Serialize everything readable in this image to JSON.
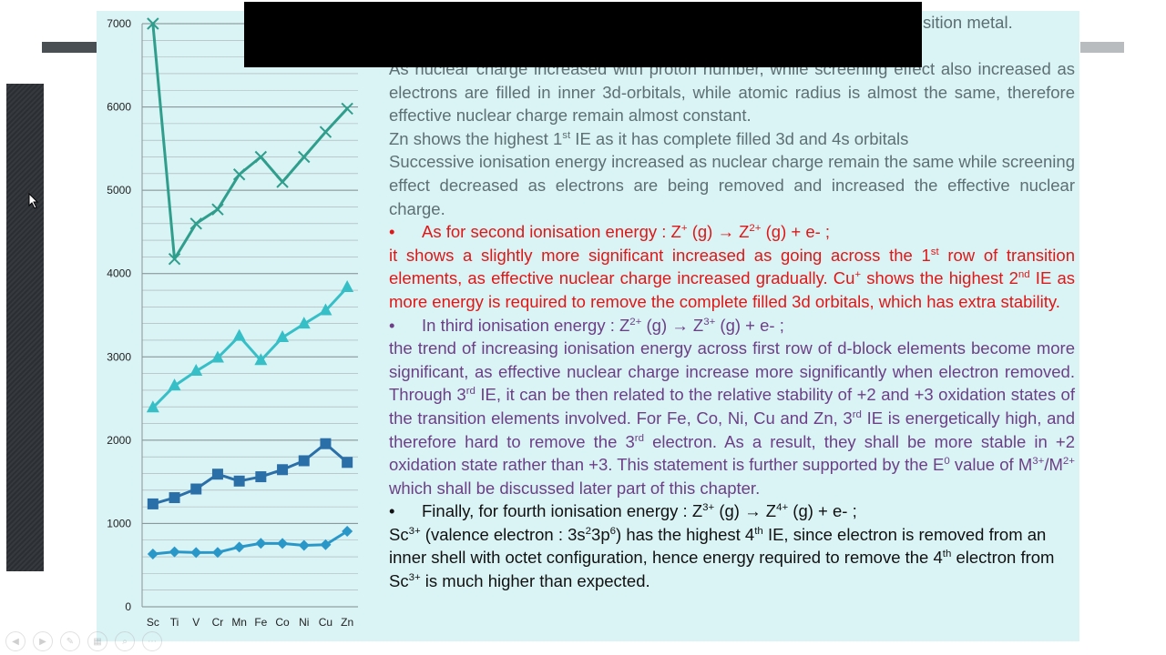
{
  "slide": {
    "title_fragment": "sition metal.",
    "paragraphs": {
      "p1a": "As nuclear charge increased with proton number, while screening effect also increased as electrons are filled in inner 3d-orbitals, while atomic radius is almost the same, therefore effective nuclear charge remain almost constant.",
      "p1b_pre": "Zn shows the highest 1",
      "p1b_sup": "st",
      "p1b_post": " IE as it has complete filled 3d and 4s orbitals",
      "p1c": "Successive ionisation energy increased as nuclear charge remain the same while screening effect decreased as electrons are being removed and increased the effective nuclear charge.",
      "second_bullet": "•",
      "second_head_pre": "As for second ionisation energy : Z",
      "second_head_sup1": "+",
      "second_head_mid": " (g) → Z",
      "second_head_sup2": "2+",
      "second_head_post": " (g) + e- ;",
      "second_body_a": "it shows a slightly more significant increased as going across the 1",
      "second_body_sup1": "st",
      "second_body_b": " row of transition elements, as effective nuclear charge increased gradually. Cu",
      "second_body_sup2": "+",
      "second_body_c": " shows the highest 2",
      "second_body_sup3": "nd",
      "second_body_d": " IE as more energy is required to remove the complete filled 3d orbitals, which has extra stability.",
      "third_bullet": "•",
      "third_head_pre": "In third ionisation energy : Z",
      "third_head_sup1": "2+",
      "third_head_mid": " (g) → Z",
      "third_head_sup2": "3+",
      "third_head_post": " (g) + e- ;",
      "third_body_a": "the trend of increasing ionisation energy across first row of d-block elements become more significant, as effective nuclear charge increase more significantly when electron removed. Through 3",
      "third_body_sup1": "rd",
      "third_body_b": " IE, it can be then related to the relative stability of +2 and +3 oxidation states of the transition elements involved. For Fe, Co, Ni, Cu and Zn, 3",
      "third_body_sup2": "rd",
      "third_body_c": " IE is energetically high, and therefore hard to remove the 3",
      "third_body_sup3": "rd",
      "third_body_d": " electron. As a result, they shall be more stable in +2 oxidation state rather than +3. This statement is further supported by the E",
      "third_body_sup4": "0",
      "third_body_e": " value of M",
      "third_body_sup5": "3+",
      "third_body_f": "/M",
      "third_body_sup6": "2+",
      "third_body_g": " which shall be discussed later part of this chapter.",
      "fourth_bullet": "•",
      "fourth_head_pre": "Finally, for fourth ionisation energy : Z",
      "fourth_head_sup1": "3+",
      "fourth_head_mid": " (g) → Z",
      "fourth_head_sup2": "4+",
      "fourth_head_post": " (g) + e- ;",
      "fourth_body_a": "Sc",
      "fourth_body_sup1": "3+",
      "fourth_body_b": " (valence electron : 3s",
      "fourth_body_sup2": "2",
      "fourth_body_c": "3p",
      "fourth_body_sup3": "6",
      "fourth_body_d": ") has the highest 4",
      "fourth_body_sup4": "th",
      "fourth_body_e": " IE, since electron is removed from an inner shell with octet configuration, hence energy required to remove the 4",
      "fourth_body_sup5": "th",
      "fourth_body_f": " electron from Sc",
      "fourth_body_sup6": "3+",
      "fourth_body_g": " is much higher than expected."
    }
  },
  "colors": {
    "slide_bg": "#daf3f5",
    "ie1": "#2a97c9",
    "ie2": "#2b6fa8",
    "ie3": "#36bfc6",
    "ie4": "#2f9e8c",
    "red_text": "#e01717",
    "purple_text": "#6c3f86"
  },
  "chart_data": {
    "type": "line",
    "categories": [
      "Sc",
      "Ti",
      "V",
      "Cr",
      "Mn",
      "Fe",
      "Co",
      "Ni",
      "Cu",
      "Zn"
    ],
    "ylim": [
      0,
      7000
    ],
    "yticks": [
      0,
      1000,
      2000,
      3000,
      4000,
      5000,
      6000,
      7000
    ],
    "grid": true,
    "series": [
      {
        "marker": "diamond",
        "color": "#2a97c9",
        "values": [
          633,
          659,
          651,
          653,
          717,
          762,
          760,
          737,
          745,
          906
        ]
      },
      {
        "marker": "square",
        "color": "#2b6fa8",
        "values": [
          1235,
          1310,
          1414,
          1592,
          1509,
          1561,
          1646,
          1753,
          1958,
          1733
        ]
      },
      {
        "marker": "triangle",
        "color": "#36bfc6",
        "values": [
          2389,
          2652,
          2828,
          2987,
          3248,
          2957,
          3232,
          3395,
          3555,
          3833
        ]
      },
      {
        "marker": "x",
        "color": "#2f9e8c",
        "values": [
          7000,
          4175,
          4600,
          4770,
          5190,
          5400,
          5100,
          5400,
          5700,
          5980
        ]
      }
    ]
  }
}
